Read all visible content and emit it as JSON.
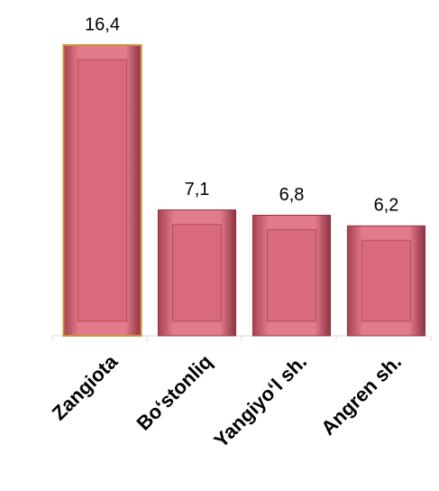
{
  "chart_data": {
    "type": "bar",
    "categories": [
      "Zangiota",
      "Bo‘stonliq",
      "Yangiyo‘l sh.",
      "Angren sh."
    ],
    "values": [
      16.4,
      7.1,
      6.8,
      6.2
    ],
    "value_labels": [
      "16,4",
      "7,1",
      "6,8",
      "6,2"
    ],
    "color": "#d96a7c",
    "ylim": [
      0,
      16.4
    ]
  }
}
